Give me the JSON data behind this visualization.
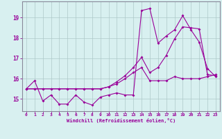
{
  "xlabel": "Windchill (Refroidissement éolien,°C)",
  "x": [
    0,
    1,
    2,
    3,
    4,
    5,
    6,
    7,
    8,
    9,
    10,
    11,
    12,
    13,
    14,
    15,
    16,
    17,
    18,
    19,
    20,
    21,
    22,
    23
  ],
  "line1": [
    15.5,
    15.9,
    14.9,
    15.2,
    14.75,
    14.75,
    15.2,
    14.85,
    14.7,
    15.1,
    15.2,
    15.3,
    15.2,
    15.2,
    19.35,
    19.45,
    17.75,
    18.1,
    18.4,
    19.1,
    18.4,
    17.8,
    16.5,
    16.1
  ],
  "line2": [
    15.5,
    15.5,
    15.5,
    15.5,
    15.5,
    15.5,
    15.5,
    15.5,
    15.5,
    15.5,
    15.6,
    15.75,
    16.0,
    16.3,
    16.55,
    15.9,
    15.9,
    15.9,
    16.1,
    16.0,
    16.0,
    16.0,
    16.1,
    16.2
  ],
  "line3": [
    15.5,
    15.5,
    15.5,
    15.5,
    15.5,
    15.5,
    15.5,
    15.5,
    15.5,
    15.5,
    15.6,
    15.85,
    16.15,
    16.55,
    17.05,
    16.3,
    16.55,
    17.15,
    17.95,
    18.55,
    18.5,
    18.45,
    16.2,
    16.15
  ],
  "ylim": [
    14.4,
    19.8
  ],
  "yticks": [
    15,
    16,
    17,
    18,
    19
  ],
  "xticks": [
    0,
    1,
    2,
    3,
    4,
    5,
    6,
    7,
    8,
    9,
    10,
    11,
    12,
    13,
    14,
    15,
    16,
    17,
    18,
    19,
    20,
    21,
    22,
    23
  ],
  "line_color": "#990099",
  "bg_color": "#d8f0f0",
  "grid_color": "#aec8c8",
  "axis_color": "#888899",
  "tick_label_color": "#990099",
  "xlabel_color": "#990099",
  "marker": "D",
  "marker_size": 2.0,
  "linewidth": 0.8
}
